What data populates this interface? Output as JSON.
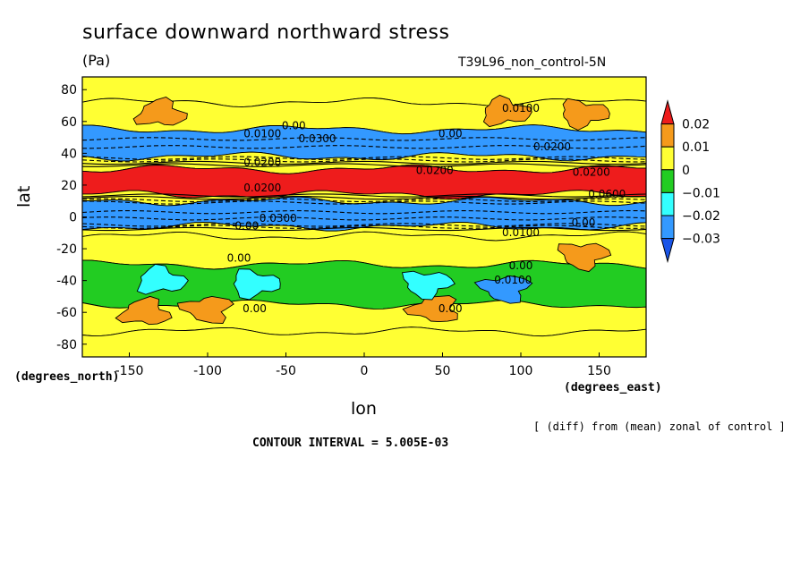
{
  "chart_data": {
    "type": "heatmap",
    "title": "surface downward northward stress",
    "units": "(Pa)",
    "run_label": "T39L96_non_control-5N",
    "xlabel": "lon",
    "ylabel": "lat",
    "x_unit_label": "(degrees_east)",
    "y_unit_label": "(degrees_north)",
    "xlim": [
      -180,
      180
    ],
    "ylim": [
      -88,
      88
    ],
    "x_ticks": [
      -150,
      -100,
      -50,
      0,
      50,
      100,
      150
    ],
    "y_ticks": [
      -80,
      -60,
      -40,
      -20,
      0,
      20,
      40,
      60,
      80
    ],
    "colorbar": {
      "labels": [
        "0.02",
        "0.01",
        "0",
        "−0.01",
        "−0.02",
        "−0.03"
      ],
      "colors": [
        "#ee1c1c",
        "#f59a1b",
        "#ffff33",
        "#22cc22",
        "#33ffff",
        "#3399ff",
        "#1a55e8"
      ],
      "thresholds": [
        0.02,
        0.01,
        0.0,
        -0.01,
        -0.02,
        -0.03
      ]
    },
    "bands": [
      {
        "lat_range": [
          72,
          88
        ],
        "level": 0.005,
        "note": "yellow/orange mottled"
      },
      {
        "lat_range": [
          55,
          72
        ],
        "level": 0.0
      },
      {
        "lat_range": [
          38,
          55
        ],
        "level": -0.025
      },
      {
        "lat_range": [
          30,
          38
        ],
        "level": 0.005
      },
      {
        "lat_range": [
          14,
          30
        ],
        "level": 0.022
      },
      {
        "lat_range": [
          10,
          14
        ],
        "level": 0.005
      },
      {
        "lat_range": [
          -6,
          10
        ],
        "level": -0.028
      },
      {
        "lat_range": [
          -12,
          -6
        ],
        "level": 0.0
      },
      {
        "lat_range": [
          -30,
          -12
        ],
        "level": 0.005
      },
      {
        "lat_range": [
          -55,
          -30
        ],
        "level": -0.01
      },
      {
        "lat_range": [
          -72,
          -55
        ],
        "level": 0.0
      },
      {
        "lat_range": [
          -88,
          -72
        ],
        "level": 0.003
      }
    ],
    "patches": [
      {
        "lon": -130,
        "lat": 65,
        "level": 0.012
      },
      {
        "lon": 90,
        "lat": 66,
        "level": 0.012
      },
      {
        "lon": 140,
        "lat": 65,
        "level": 0.012
      },
      {
        "lon": 140,
        "lat": -24,
        "level": 0.012
      },
      {
        "lon": -100,
        "lat": -58,
        "level": 0.012
      },
      {
        "lon": 45,
        "lat": -58,
        "level": 0.012
      },
      {
        "lon": -140,
        "lat": -60,
        "level": 0.012
      },
      {
        "lon": -130,
        "lat": -40,
        "level": -0.013
      },
      {
        "lon": -70,
        "lat": -42,
        "level": -0.013
      },
      {
        "lon": 40,
        "lat": -42,
        "level": -0.013
      },
      {
        "lon": 90,
        "lat": -45,
        "level": -0.022
      }
    ],
    "contour_labels": [
      {
        "text": "0.0100",
        "lon": 100,
        "lat": 66
      },
      {
        "text": "0.00",
        "lon": -45,
        "lat": 55
      },
      {
        "text": "0.00",
        "lon": 55,
        "lat": 50
      },
      {
        "text": "0.0100",
        "lon": -65,
        "lat": 50
      },
      {
        "text": "0.0300",
        "lon": -30,
        "lat": 47
      },
      {
        "text": "0.0200",
        "lon": 120,
        "lat": 42
      },
      {
        "text": "0.0200",
        "lon": -65,
        "lat": 32
      },
      {
        "text": "0.0200",
        "lon": 45,
        "lat": 27
      },
      {
        "text": "0.0200",
        "lon": 145,
        "lat": 26
      },
      {
        "text": "0.0200",
        "lon": -65,
        "lat": 16
      },
      {
        "text": "0.0600",
        "lon": 155,
        "lat": 12
      },
      {
        "text": "0.0300",
        "lon": -55,
        "lat": -3
      },
      {
        "text": "0.00",
        "lon": -75,
        "lat": -8
      },
      {
        "text": "0.00",
        "lon": 140,
        "lat": -6
      },
      {
        "text": "0.0100",
        "lon": 100,
        "lat": -12
      },
      {
        "text": "0.00",
        "lon": -80,
        "lat": -28
      },
      {
        "text": "0.00",
        "lon": 100,
        "lat": -33
      },
      {
        "text": "0.0100",
        "lon": 95,
        "lat": -42
      },
      {
        "text": "0.00",
        "lon": -70,
        "lat": -60
      },
      {
        "text": "0.00",
        "lon": 55,
        "lat": -60
      }
    ]
  },
  "footer": {
    "note": "[ (diff) from (mean) zonal of control ]",
    "contour_interval": "CONTOUR INTERVAL = 5.005E-03"
  }
}
